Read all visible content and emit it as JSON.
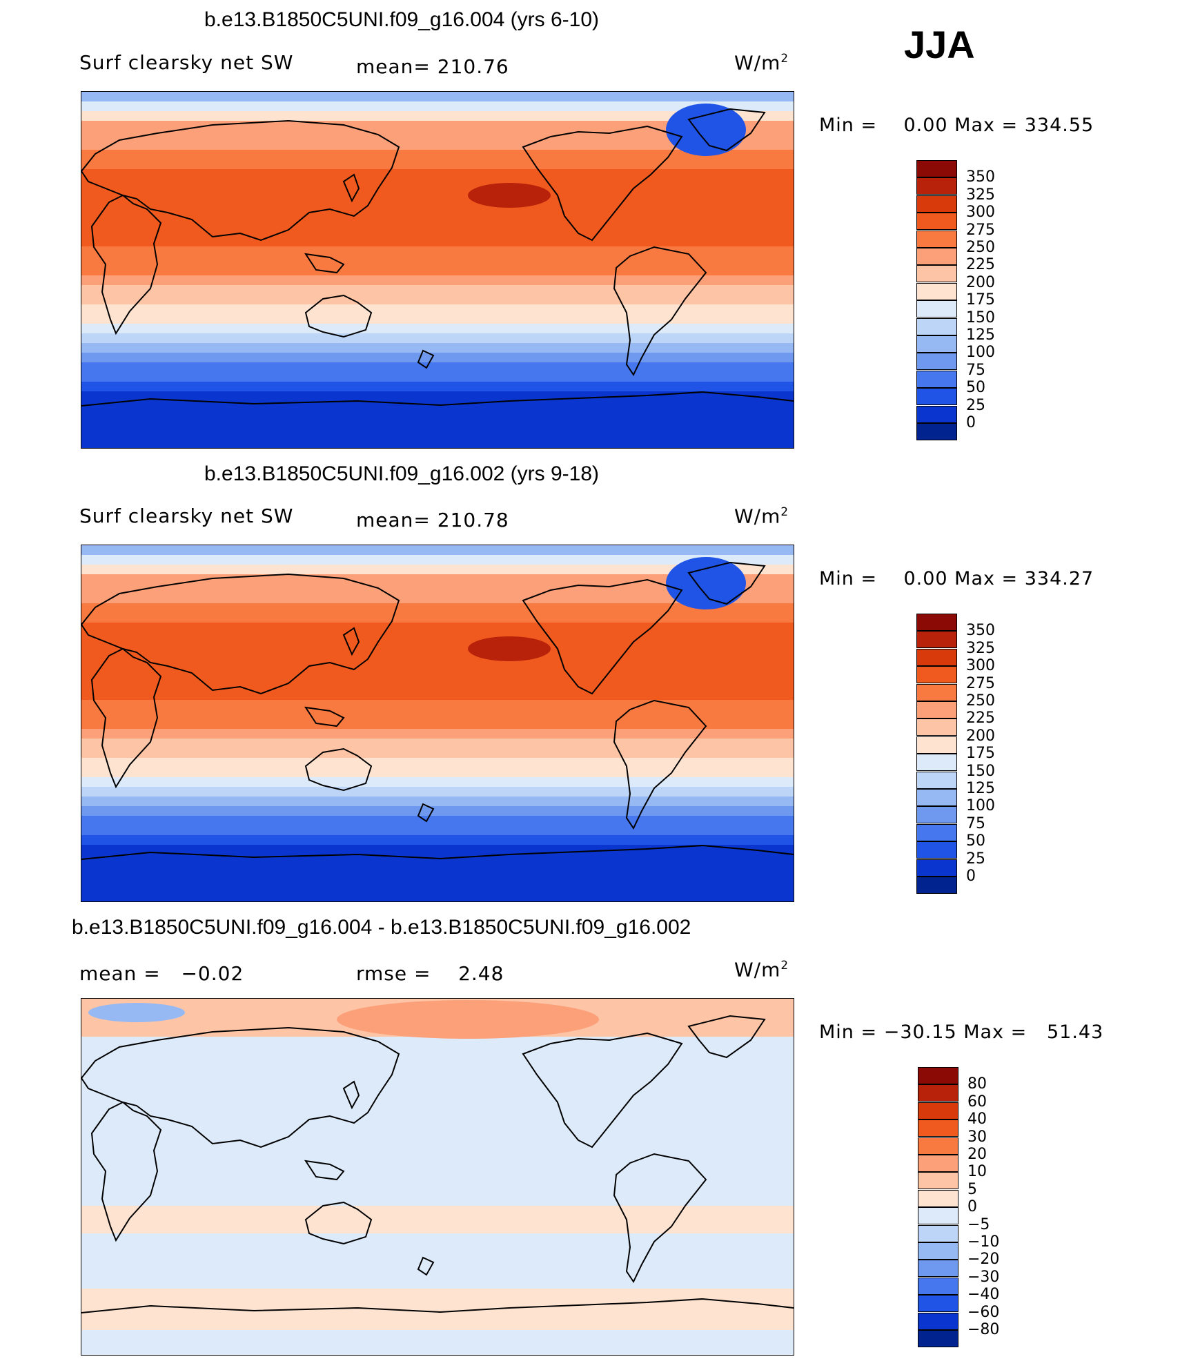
{
  "season": "JJA",
  "panels": [
    {
      "title": "b.e13.B1850C5UNI.f09_g16.004 (yrs 6-10)",
      "variable": "Surf clearsky net SW",
      "stat_text": "mean= 210.76",
      "units_base": "W/m",
      "units_exp": "2",
      "minmax": "Min =    0.00 Max = 334.55",
      "colorbar": "abs"
    },
    {
      "title": "b.e13.B1850C5UNI.f09_g16.002 (yrs 9-18)",
      "variable": "Surf clearsky net SW",
      "stat_text": "mean= 210.78",
      "units_base": "W/m",
      "units_exp": "2",
      "minmax": "Min =    0.00 Max = 334.27",
      "colorbar": "abs"
    },
    {
      "title": "b.e13.B1850C5UNI.f09_g16.004 - b.e13.B1850C5UNI.f09_g16.002",
      "variable": "mean =   −0.02",
      "stat_text": "rmse =    2.48",
      "units_base": "W/m",
      "units_exp": "2",
      "minmax": "Min = −30.15 Max =   51.43",
      "colorbar": "diff"
    }
  ],
  "colorbars": {
    "abs": {
      "labels": [
        "350",
        "325",
        "300",
        "275",
        "250",
        "225",
        "200",
        "175",
        "150",
        "125",
        "100",
        "75",
        "50",
        "25",
        "0"
      ],
      "colors": [
        "#8b0a06",
        "#b8210a",
        "#d93a0c",
        "#f05a1e",
        "#f97a40",
        "#fca07a",
        "#fdc4a6",
        "#fde3d0",
        "#dceafa",
        "#bdd5f7",
        "#97b9f3",
        "#6e99ef",
        "#4677ee",
        "#1f54e6",
        "#0a36cf",
        "#00238f"
      ]
    },
    "diff": {
      "labels": [
        "80",
        "60",
        "40",
        "30",
        "20",
        "10",
        "5",
        "0",
        "−5",
        "−10",
        "−20",
        "−30",
        "−40",
        "−60",
        "−80"
      ],
      "colors": [
        "#8b0a06",
        "#b8210a",
        "#d93a0c",
        "#f05a1e",
        "#f97a40",
        "#fca07a",
        "#fdc4a6",
        "#fde3d0",
        "#dceafa",
        "#bdd5f7",
        "#97b9f3",
        "#6e99ef",
        "#4677ee",
        "#1f54e6",
        "#0a36cf",
        "#00238f"
      ]
    }
  }
}
